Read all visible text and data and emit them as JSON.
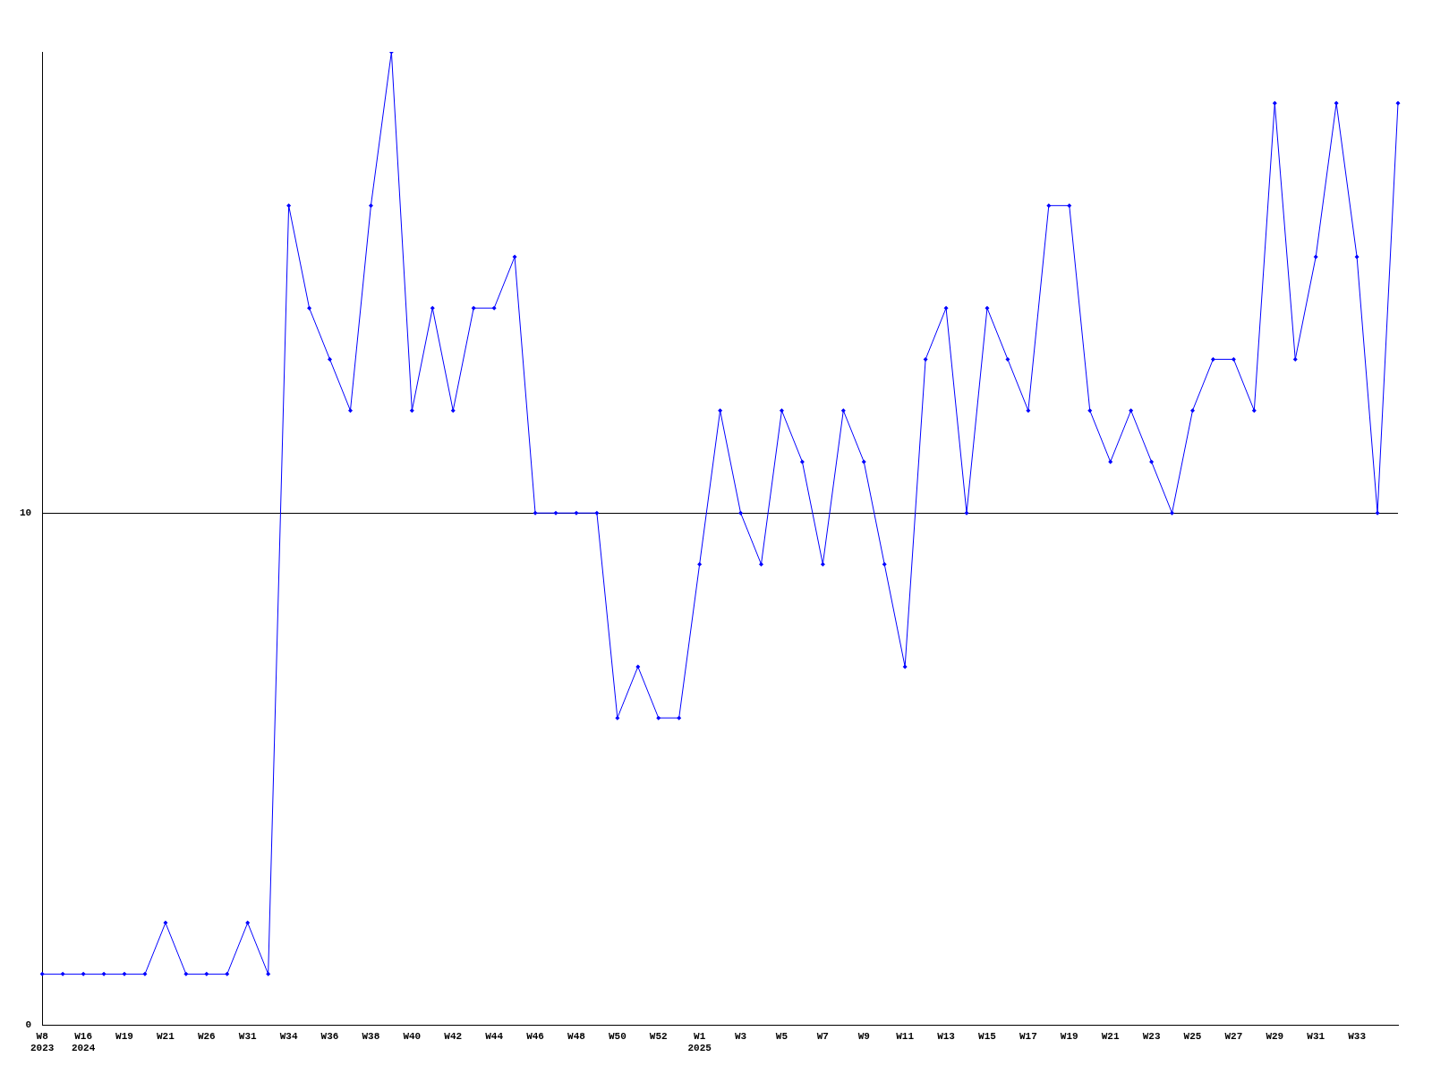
{
  "chart_data": {
    "type": "line",
    "categories": [
      "W8\n2023",
      null,
      "W16\n2024",
      null,
      "W19",
      null,
      "W21",
      null,
      "W26",
      null,
      "W31",
      null,
      "W34",
      null,
      "W36",
      null,
      "W38",
      null,
      "W40",
      null,
      "W42",
      null,
      "W44",
      null,
      "W46",
      null,
      "W48",
      null,
      "W50",
      null,
      "W52",
      null,
      "W1\n2025",
      null,
      "W3",
      null,
      "W5",
      null,
      "W7",
      null,
      "W9",
      null,
      "W11",
      null,
      "W13",
      null,
      "W15",
      null,
      "W17",
      null,
      "W19",
      null,
      "W21",
      null,
      "W23",
      null,
      "W25",
      null,
      "W27",
      null,
      "W29",
      null,
      "W31",
      null,
      "W33",
      null,
      null
    ],
    "series": [
      {
        "color": "#0000ff",
        "values": [
          1,
          1,
          1,
          1,
          1,
          1,
          2,
          1,
          1,
          1,
          2,
          1,
          16,
          14,
          13,
          12,
          16,
          19,
          12,
          14,
          12,
          14,
          14,
          15,
          10,
          10,
          10,
          10,
          6,
          7,
          6,
          6,
          9,
          12,
          10,
          9,
          12,
          11,
          9,
          12,
          11,
          9,
          7,
          13,
          14,
          10,
          14,
          13,
          12,
          16,
          16,
          12,
          11,
          12,
          11,
          10,
          12,
          13,
          13,
          12,
          18,
          13,
          15,
          18,
          15,
          10,
          18
        ]
      }
    ],
    "ylim": [
      0,
      19
    ],
    "yticks": [
      0,
      10
    ],
    "grid": "y",
    "legend": false,
    "marker": "diamond",
    "line_style": "solid"
  }
}
